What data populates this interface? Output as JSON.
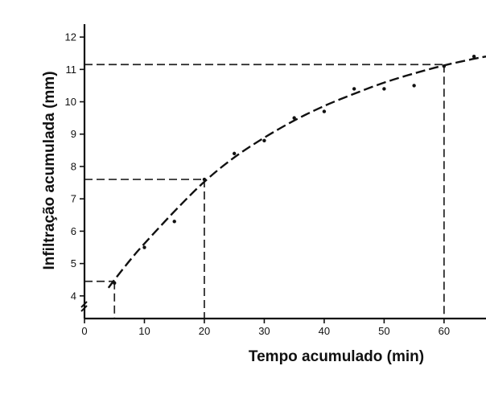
{
  "chart_data": {
    "type": "scatter",
    "title": "",
    "xlabel": "Tempo acumulado (min)",
    "ylabel": "Infiltração acumulada (mm)",
    "xlim": [
      0,
      67
    ],
    "ylim": [
      3.3,
      12.4
    ],
    "xticks": [
      0,
      10,
      20,
      30,
      40,
      50,
      60
    ],
    "yticks": [
      4,
      5,
      6,
      7,
      8,
      9,
      10,
      11,
      12
    ],
    "axis_break": "y",
    "grid": false,
    "series": [
      {
        "points": [
          {
            "x": 5,
            "y": 4.4
          },
          {
            "x": 10,
            "y": 5.5
          },
          {
            "x": 15,
            "y": 6.3
          },
          {
            "x": 20,
            "y": 7.6
          },
          {
            "x": 25,
            "y": 8.4
          },
          {
            "x": 30,
            "y": 8.8
          },
          {
            "x": 35,
            "y": 9.5
          },
          {
            "x": 40,
            "y": 9.7
          },
          {
            "x": 45,
            "y": 10.4
          },
          {
            "x": 50,
            "y": 10.4
          },
          {
            "x": 55,
            "y": 10.5
          },
          {
            "x": 60,
            "y": 11.1
          },
          {
            "x": 65,
            "y": 11.4
          }
        ]
      }
    ],
    "fitted_curve": [
      {
        "x": 4,
        "y": 4.25
      },
      {
        "x": 5,
        "y": 4.5
      },
      {
        "x": 8,
        "y": 5.2
      },
      {
        "x": 10,
        "y": 5.62
      },
      {
        "x": 15,
        "y": 6.62
      },
      {
        "x": 20,
        "y": 7.55
      },
      {
        "x": 25,
        "y": 8.3
      },
      {
        "x": 30,
        "y": 8.9
      },
      {
        "x": 35,
        "y": 9.43
      },
      {
        "x": 40,
        "y": 9.88
      },
      {
        "x": 45,
        "y": 10.25
      },
      {
        "x": 50,
        "y": 10.6
      },
      {
        "x": 55,
        "y": 10.88
      },
      {
        "x": 60,
        "y": 11.13
      },
      {
        "x": 65,
        "y": 11.33
      },
      {
        "x": 67,
        "y": 11.4
      }
    ],
    "reference_lines": [
      {
        "x": 5,
        "y": 4.45
      },
      {
        "x": 20,
        "y": 7.6
      },
      {
        "x": 60,
        "y": 11.15
      }
    ]
  }
}
